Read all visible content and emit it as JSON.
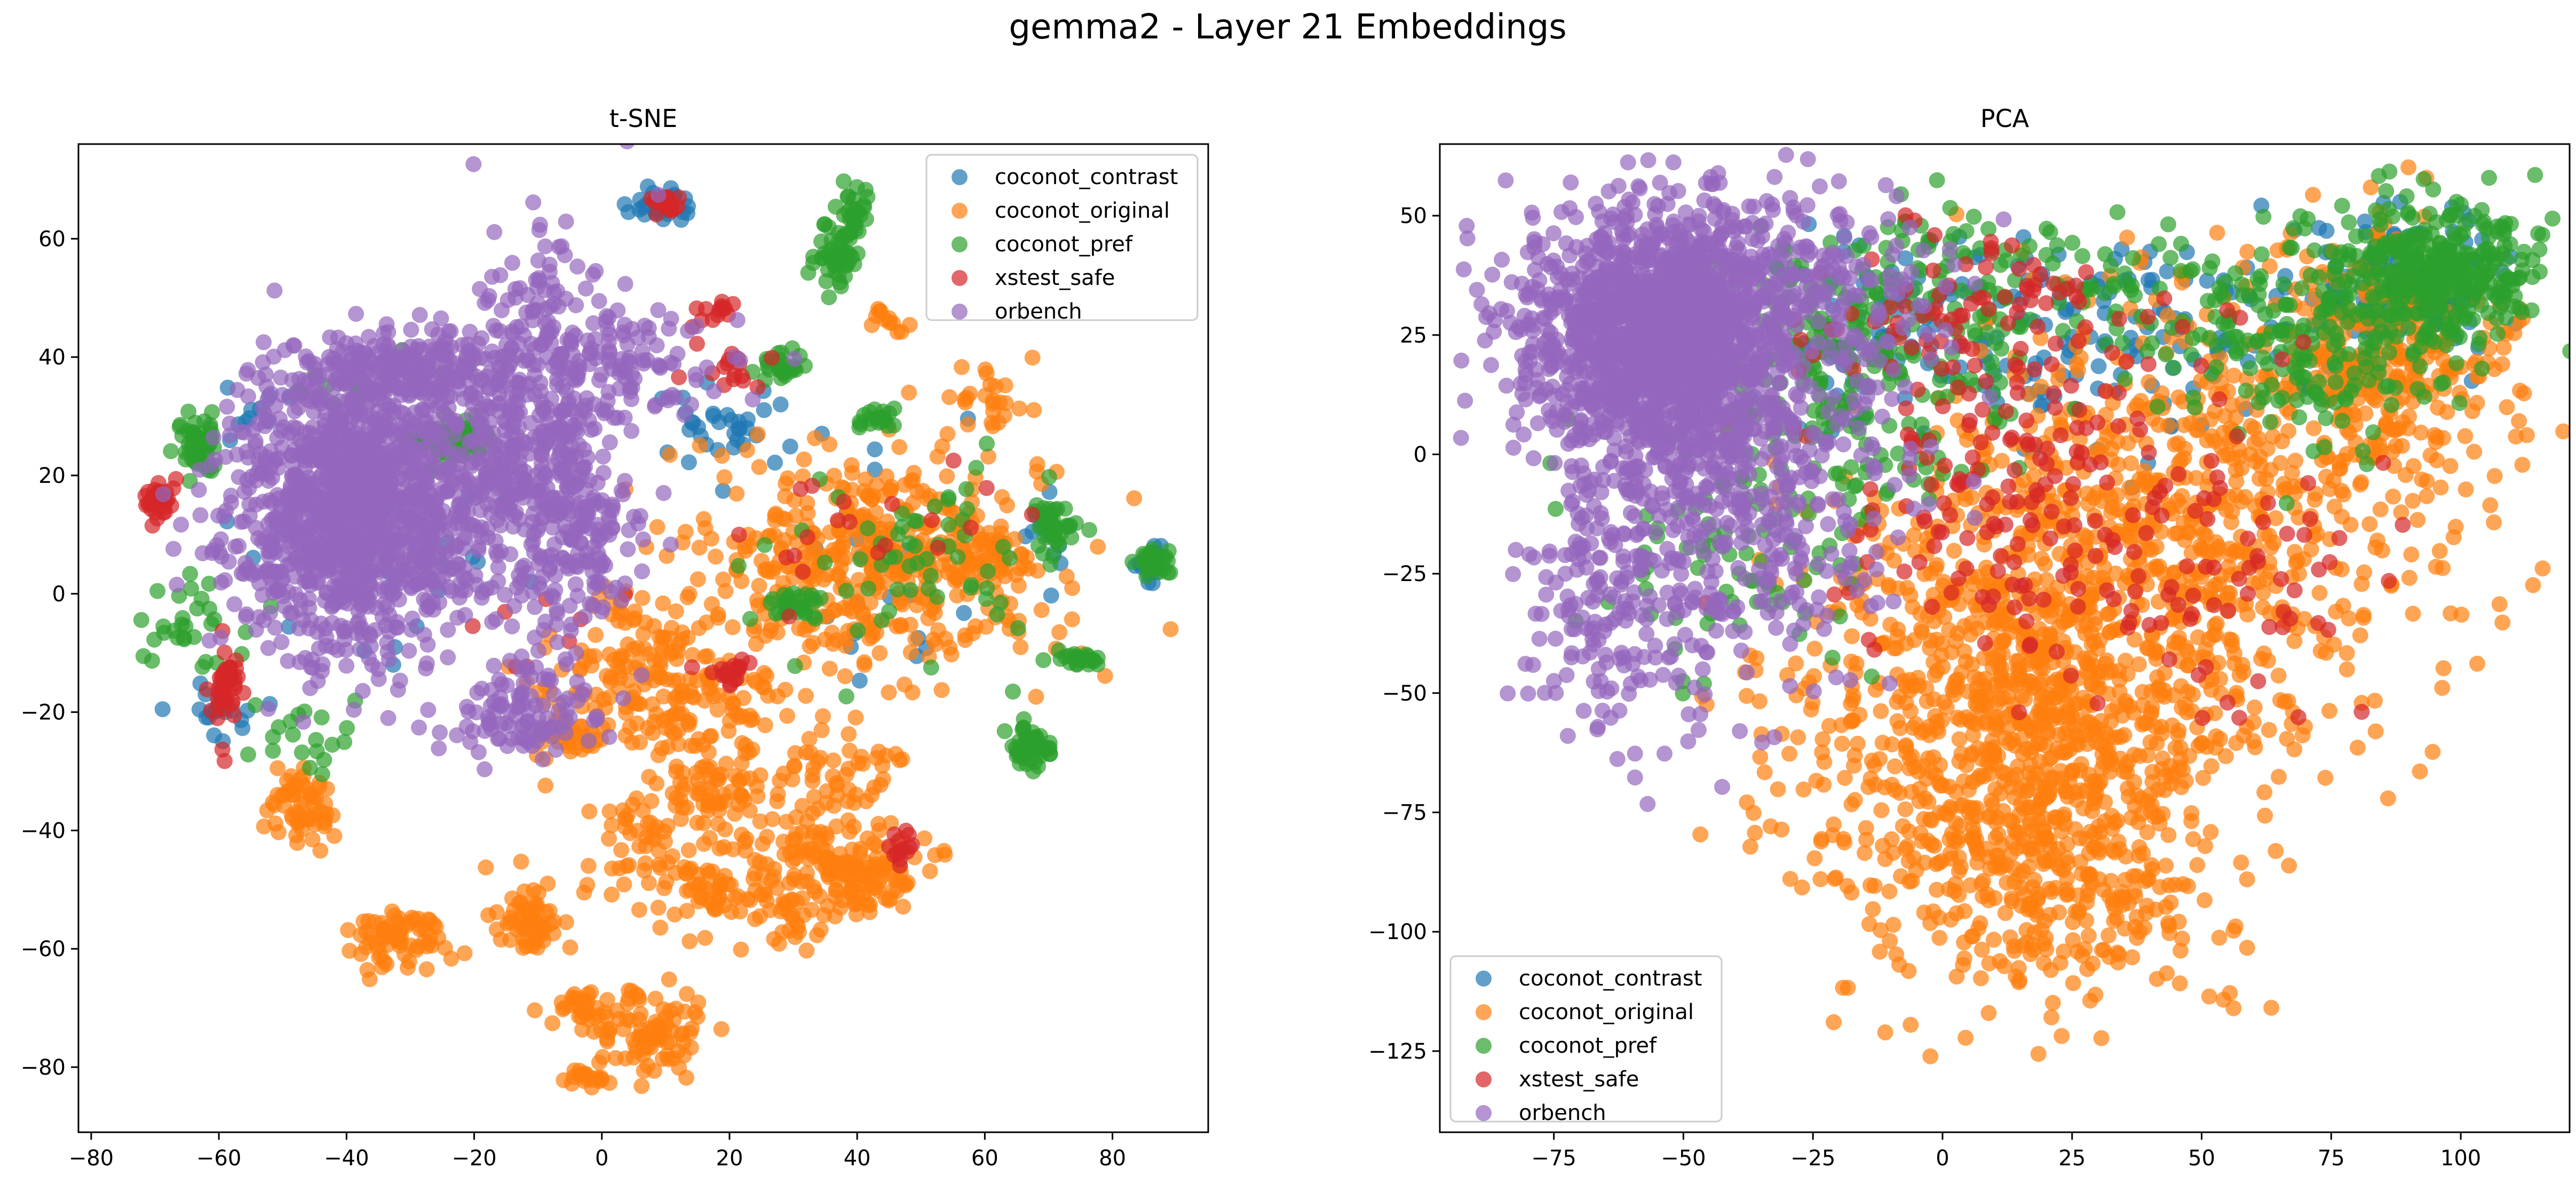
{
  "figure": {
    "title": "gemma2 - Layer 21 Embeddings"
  },
  "colors": {
    "coconot_contrast": "#1f77b4",
    "coconot_original": "#ff7f0e",
    "coconot_pref": "#2ca02c",
    "xstest_safe": "#d62728",
    "orbench": "#9467bd"
  },
  "chart_data": [
    {
      "type": "scatter",
      "title": "t-SNE",
      "xlabel": "",
      "ylabel": "",
      "xlim": [
        -82,
        95
      ],
      "ylim": [
        -91,
        76
      ],
      "xticks": [
        -80,
        -60,
        -40,
        -20,
        0,
        20,
        40,
        60,
        80
      ],
      "yticks": [
        -80,
        -60,
        -40,
        -20,
        0,
        20,
        40,
        60
      ],
      "grid": false,
      "legend_position": "upper right",
      "series": [
        {
          "name": "coconot_contrast",
          "clusters": [
            {
              "cx": 10,
              "cy": 66,
              "sx": 2.2,
              "sy": 1.4,
              "n": 30
            },
            {
              "cx": 86,
              "cy": 5,
              "sx": 1.3,
              "sy": 1.4,
              "n": 20
            },
            {
              "cx": 70,
              "cy": 12,
              "sx": 3,
              "sy": 3,
              "n": 12
            },
            {
              "cx": -60,
              "cy": -20,
              "sx": 3,
              "sy": 2.5,
              "n": 20
            },
            {
              "cx": 18,
              "cy": 28,
              "sx": 6,
              "sy": 4,
              "n": 35
            },
            {
              "cx": -30,
              "cy": 5,
              "sx": 12,
              "sy": 12,
              "n": 35
            },
            {
              "cx": -55,
              "cy": 30,
              "sx": 4,
              "sy": 3,
              "n": 10
            },
            {
              "cx": 42,
              "cy": 5,
              "sx": 10,
              "sy": 10,
              "n": 20
            }
          ]
        },
        {
          "name": "coconot_original",
          "clusters": [
            {
              "cx": 40,
              "cy": 5,
              "sx": 14,
              "sy": 9,
              "n": 420
            },
            {
              "cx": 60,
              "cy": 5,
              "sx": 4,
              "sy": 4,
              "n": 60
            },
            {
              "cx": 62,
              "cy": 33,
              "sx": 4,
              "sy": 3,
              "n": 25
            },
            {
              "cx": 45,
              "cy": 46,
              "sx": 1.5,
              "sy": 1.2,
              "n": 12
            },
            {
              "cx": 5,
              "cy": -10,
              "sx": 6,
              "sy": 6,
              "n": 60
            },
            {
              "cx": 10,
              "cy": -18,
              "sx": 10,
              "sy": 4,
              "n": 130
            },
            {
              "cx": 18,
              "cy": -33,
              "sx": 4,
              "sy": 4,
              "n": 70
            },
            {
              "cx": 5,
              "cy": -40,
              "sx": 4,
              "sy": 5,
              "n": 40
            },
            {
              "cx": 18,
              "cy": -50,
              "sx": 8,
              "sy": 4,
              "n": 90
            },
            {
              "cx": 32,
              "cy": -43,
              "sx": 5,
              "sy": 5,
              "n": 60
            },
            {
              "cx": 40,
              "cy": -47,
              "sx": 5,
              "sy": 3,
              "n": 100
            },
            {
              "cx": 38,
              "cy": -30,
              "sx": 5,
              "sy": 4,
              "n": 50
            },
            {
              "cx": -5,
              "cy": -24,
              "sx": 3,
              "sy": 2,
              "n": 40
            },
            {
              "cx": -2,
              "cy": -70,
              "sx": 3,
              "sy": 2,
              "n": 40
            },
            {
              "cx": 8,
              "cy": -75,
              "sx": 4,
              "sy": 4,
              "n": 80
            },
            {
              "cx": -3,
              "cy": -82,
              "sx": 2,
              "sy": 1,
              "n": 20
            },
            {
              "cx": -12,
              "cy": -55,
              "sx": 3,
              "sy": 3,
              "n": 60
            },
            {
              "cx": -32,
              "cy": -58,
              "sx": 4,
              "sy": 3,
              "n": 70
            },
            {
              "cx": -46,
              "cy": -36,
              "sx": 3,
              "sy": 3,
              "n": 60
            },
            {
              "cx": 30,
              "cy": -55,
              "sx": 3,
              "sy": 3,
              "n": 25
            }
          ]
        },
        {
          "name": "coconot_pref",
          "clusters": [
            {
              "cx": 39,
              "cy": 62,
              "sx": 2,
              "sy": 3,
              "n": 45
            },
            {
              "cx": 36,
              "cy": 56,
              "sx": 1.5,
              "sy": 2,
              "n": 30
            },
            {
              "cx": 67,
              "cy": -26,
              "sx": 1.5,
              "sy": 1.5,
              "n": 55
            },
            {
              "cx": 75,
              "cy": -11,
              "sx": 2,
              "sy": 0.8,
              "n": 25
            },
            {
              "cx": 86,
              "cy": 5,
              "sx": 1.3,
              "sy": 1.2,
              "n": 45
            },
            {
              "cx": 70,
              "cy": 11,
              "sx": 2,
              "sy": 3,
              "n": 40
            },
            {
              "cx": -24,
              "cy": 26,
              "sx": 3,
              "sy": 2,
              "n": 70
            },
            {
              "cx": -63,
              "cy": 25,
              "sx": 2,
              "sy": 3,
              "n": 50
            },
            {
              "cx": 43,
              "cy": 30,
              "sx": 2,
              "sy": 1,
              "n": 20
            },
            {
              "cx": 28,
              "cy": 38,
              "sx": 2,
              "sy": 1.5,
              "n": 25
            },
            {
              "cx": 30,
              "cy": -2,
              "sx": 3,
              "sy": 1.5,
              "n": 30
            },
            {
              "cx": -65,
              "cy": -5,
              "sx": 4,
              "sy": 4,
              "n": 30
            },
            {
              "cx": -45,
              "cy": -25,
              "sx": 6,
              "sy": 3,
              "n": 20
            },
            {
              "cx": 48,
              "cy": 5,
              "sx": 10,
              "sy": 8,
              "n": 60
            },
            {
              "cx": -40,
              "cy": 35,
              "sx": 8,
              "sy": 3,
              "n": 15
            }
          ]
        },
        {
          "name": "xstest_safe",
          "clusters": [
            {
              "cx": 10,
              "cy": 66,
              "sx": 1.3,
              "sy": 1,
              "n": 20
            },
            {
              "cx": -70,
              "cy": 16,
              "sx": 1.5,
              "sy": 2,
              "n": 30
            },
            {
              "cx": -59,
              "cy": -16,
              "sx": 1.2,
              "sy": 3,
              "n": 45
            },
            {
              "cx": 20,
              "cy": -13,
              "sx": 2,
              "sy": 1.5,
              "n": 20
            },
            {
              "cx": 47,
              "cy": -43,
              "sx": 1,
              "sy": 2,
              "n": 15
            },
            {
              "cx": 17,
              "cy": 47,
              "sx": 2,
              "sy": 1.5,
              "n": 15
            },
            {
              "cx": 20,
              "cy": 37,
              "sx": 3,
              "sy": 2,
              "n": 15
            },
            {
              "cx": 40,
              "cy": 10,
              "sx": 12,
              "sy": 8,
              "n": 20
            },
            {
              "cx": -10,
              "cy": -5,
              "sx": 8,
              "sy": 4,
              "n": 8
            }
          ]
        },
        {
          "name": "orbench",
          "clusters": [
            {
              "cx": -38,
              "cy": 15,
              "sx": 10,
              "sy": 12,
              "n": 1300
            },
            {
              "cx": -10,
              "cy": 28,
              "sx": 7,
              "sy": 15,
              "n": 450
            },
            {
              "cx": -30,
              "cy": 38,
              "sx": 8,
              "sy": 3,
              "n": 200
            },
            {
              "cx": -12,
              "cy": -20,
              "sx": 5,
              "sy": 4,
              "n": 100
            },
            {
              "cx": 5,
              "cy": 40,
              "sx": 8,
              "sy": 4,
              "n": 80
            },
            {
              "cx": -5,
              "cy": 10,
              "sx": 5,
              "sy": 10,
              "n": 120
            }
          ]
        }
      ]
    },
    {
      "type": "scatter",
      "title": "PCA",
      "xlabel": "",
      "ylabel": "",
      "xlim": [
        -97,
        121
      ],
      "ylim": [
        -142,
        65
      ],
      "xticks": [
        -75,
        -50,
        -25,
        0,
        25,
        50,
        75,
        100
      ],
      "yticks": [
        -125,
        -100,
        -75,
        -50,
        -25,
        0,
        25,
        50
      ],
      "grid": false,
      "legend_position": "lower left",
      "series": [
        {
          "name": "coconot_contrast",
          "clusters": [
            {
              "cx": 30,
              "cy": 25,
              "sx": 30,
              "sy": 10,
              "n": 150
            },
            {
              "cx": 90,
              "cy": 35,
              "sx": 10,
              "sy": 7,
              "n": 120
            },
            {
              "cx": -10,
              "cy": 25,
              "sx": 15,
              "sy": 10,
              "n": 60
            }
          ]
        },
        {
          "name": "coconot_original",
          "clusters": [
            {
              "cx": 15,
              "cy": -55,
              "sx": 22,
              "sy": 25,
              "n": 1100
            },
            {
              "cx": 50,
              "cy": -10,
              "sx": 25,
              "sy": 25,
              "n": 600
            },
            {
              "cx": 85,
              "cy": 20,
              "sx": 12,
              "sy": 12,
              "n": 300
            },
            {
              "cx": 20,
              "cy": -90,
              "sx": 15,
              "sy": 12,
              "n": 200
            }
          ]
        },
        {
          "name": "coconot_pref",
          "clusters": [
            {
              "cx": 95,
              "cy": 38,
              "sx": 10,
              "sy": 7,
              "n": 350
            },
            {
              "cx": 70,
              "cy": 20,
              "sx": 15,
              "sy": 10,
              "n": 150
            },
            {
              "cx": -15,
              "cy": 20,
              "sx": 15,
              "sy": 15,
              "n": 250
            },
            {
              "cx": 25,
              "cy": 35,
              "sx": 30,
              "sy": 7,
              "n": 120
            },
            {
              "cx": -40,
              "cy": -20,
              "sx": 15,
              "sy": 15,
              "n": 80
            }
          ]
        },
        {
          "name": "xstest_safe",
          "clusters": [
            {
              "cx": 15,
              "cy": -10,
              "sx": 20,
              "sy": 15,
              "n": 150
            },
            {
              "cx": 10,
              "cy": 30,
              "sx": 20,
              "sy": 10,
              "n": 100
            },
            {
              "cx": 50,
              "cy": -30,
              "sx": 20,
              "sy": 15,
              "n": 60
            }
          ]
        },
        {
          "name": "orbench",
          "clusters": [
            {
              "cx": -55,
              "cy": 25,
              "sx": 12,
              "sy": 13,
              "n": 1500
            },
            {
              "cx": -40,
              "cy": -5,
              "sx": 15,
              "sy": 22,
              "n": 500
            },
            {
              "cx": -65,
              "cy": -30,
              "sx": 8,
              "sy": 15,
              "n": 150
            },
            {
              "cx": -30,
              "cy": 35,
              "sx": 15,
              "sy": 10,
              "n": 200
            }
          ]
        }
      ]
    }
  ]
}
